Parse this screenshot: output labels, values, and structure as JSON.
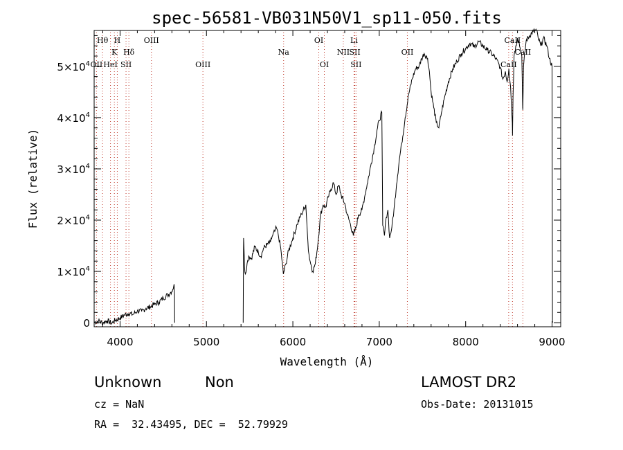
{
  "chart_data": {
    "type": "line",
    "title": "spec-56581-VB031N50V1_sp11-050.fits",
    "xlabel": "Wavelength (Å)",
    "ylabel": "Flux (relative)",
    "xlim": [
      3700,
      9100
    ],
    "ylim": [
      -800,
      57000
    ],
    "x_ticks": [
      4000,
      5000,
      6000,
      7000,
      8000,
      9000
    ],
    "y_ticks": [
      {
        "value": 0,
        "mant": "0",
        "exp": ""
      },
      {
        "value": 10000,
        "mant": "1×10",
        "exp": "4"
      },
      {
        "value": 20000,
        "mant": "2×10",
        "exp": "4"
      },
      {
        "value": 30000,
        "mant": "3×10",
        "exp": "4"
      },
      {
        "value": 40000,
        "mant": "4×10",
        "exp": "4"
      },
      {
        "value": 50000,
        "mant": "5×10",
        "exp": "4"
      }
    ],
    "grid": false,
    "series": [
      {
        "segments": [
          [
            [
              3700,
              100
            ],
            [
              3750,
              300
            ],
            [
              3800,
              0
            ],
            [
              3850,
              400
            ],
            [
              3900,
              -100
            ],
            [
              3950,
              500
            ],
            [
              4000,
              900
            ],
            [
              4050,
              1500
            ],
            [
              4100,
              1800
            ],
            [
              4150,
              1600
            ],
            [
              4200,
              2300
            ],
            [
              4250,
              2200
            ],
            [
              4300,
              2800
            ],
            [
              4350,
              3100
            ],
            [
              4400,
              3600
            ],
            [
              4450,
              4000
            ],
            [
              4500,
              4800
            ],
            [
              4550,
              5400
            ],
            [
              4580,
              5800
            ],
            [
              4610,
              6500
            ],
            [
              4620,
              7000
            ],
            [
              4625,
              7500
            ],
            [
              4630,
              5500
            ],
            [
              4632,
              0
            ]
          ],
          [
            [
              5425,
              0
            ],
            [
              5430,
              16500
            ],
            [
              5440,
              11000
            ],
            [
              5450,
              9500
            ],
            [
              5470,
              11500
            ],
            [
              5490,
              13000
            ],
            [
              5520,
              12500
            ],
            [
              5560,
              14800
            ],
            [
              5600,
              13800
            ],
            [
              5630,
              12900
            ],
            [
              5660,
              14500
            ],
            [
              5700,
              15200
            ],
            [
              5740,
              15700
            ],
            [
              5760,
              16800
            ],
            [
              5790,
              17800
            ],
            [
              5810,
              18500
            ],
            [
              5830,
              17200
            ],
            [
              5860,
              14500
            ],
            [
              5890,
              9500
            ],
            [
              5920,
              11500
            ],
            [
              5950,
              14000
            ],
            [
              6000,
              16500
            ],
            [
              6050,
              19200
            ],
            [
              6100,
              21200
            ],
            [
              6150,
              23000
            ],
            [
              6180,
              14000
            ],
            [
              6200,
              12000
            ],
            [
              6230,
              10000
            ],
            [
              6260,
              11500
            ],
            [
              6290,
              15500
            ],
            [
              6320,
              21000
            ],
            [
              6350,
              23000
            ],
            [
              6380,
              22500
            ],
            [
              6410,
              24500
            ],
            [
              6440,
              26000
            ],
            [
              6470,
              27300
            ],
            [
              6500,
              25000
            ],
            [
              6530,
              26800
            ],
            [
              6560,
              24800
            ],
            [
              6600,
              23300
            ],
            [
              6630,
              21000
            ],
            [
              6660,
              19500
            ],
            [
              6700,
              17000
            ],
            [
              6730,
              18500
            ],
            [
              6760,
              21000
            ],
            [
              6800,
              22000
            ],
            [
              6830,
              24500
            ],
            [
              6860,
              27000
            ],
            [
              6900,
              30500
            ],
            [
              6940,
              34000
            ],
            [
              6980,
              38000
            ],
            [
              7000,
              39500
            ],
            [
              7030,
              41000
            ],
            [
              7040,
              19000
            ],
            [
              7060,
              17000
            ],
            [
              7080,
              20500
            ],
            [
              7100,
              22000
            ],
            [
              7120,
              16500
            ],
            [
              7140,
              18000
            ],
            [
              7170,
              22000
            ],
            [
              7200,
              27000
            ],
            [
              7230,
              31500
            ],
            [
              7260,
              35000
            ],
            [
              7300,
              40000
            ],
            [
              7340,
              44500
            ],
            [
              7380,
              47500
            ],
            [
              7420,
              49500
            ],
            [
              7460,
              50000
            ],
            [
              7490,
              51500
            ],
            [
              7520,
              52500
            ],
            [
              7560,
              51500
            ],
            [
              7580,
              49000
            ],
            [
              7600,
              45000
            ],
            [
              7630,
              42000
            ],
            [
              7660,
              39000
            ],
            [
              7690,
              38000
            ],
            [
              7720,
              41000
            ],
            [
              7750,
              43500
            ],
            [
              7800,
              47000
            ],
            [
              7850,
              49500
            ],
            [
              7900,
              51000
            ],
            [
              7950,
              52500
            ],
            [
              8000,
              53500
            ],
            [
              8050,
              54500
            ],
            [
              8100,
              53800
            ],
            [
              8150,
              54800
            ],
            [
              8200,
              54000
            ],
            [
              8250,
              53200
            ],
            [
              8300,
              52500
            ],
            [
              8350,
              51500
            ],
            [
              8400,
              49800
            ],
            [
              8430,
              47500
            ],
            [
              8460,
              49000
            ],
            [
              8480,
              47000
            ],
            [
              8500,
              49500
            ],
            [
              8520,
              46000
            ],
            [
              8540,
              39000
            ],
            [
              8542,
              36500
            ],
            [
              8548,
              44000
            ],
            [
              8560,
              52000
            ],
            [
              8580,
              54000
            ],
            [
              8600,
              55500
            ],
            [
              8620,
              54500
            ],
            [
              8650,
              52000
            ],
            [
              8660,
              42000
            ],
            [
              8662,
              41500
            ],
            [
              8670,
              50000
            ],
            [
              8700,
              55000
            ],
            [
              8740,
              56000
            ],
            [
              8780,
              56800
            ],
            [
              8820,
              57000
            ],
            [
              8840,
              55500
            ],
            [
              8870,
              54000
            ],
            [
              8900,
              55500
            ],
            [
              8940,
              54000
            ],
            [
              8970,
              51500
            ],
            [
              9000,
              50000
            ],
            [
              9005,
              0
            ]
          ]
        ]
      }
    ],
    "lines": [
      {
        "label": "Hθ",
        "x": 3797,
        "row": 0
      },
      {
        "label": "OII",
        "x": 3727,
        "row": 2
      },
      {
        "label": "H",
        "x": 3968,
        "row": 0
      },
      {
        "label": "K",
        "x": 3934,
        "row": 1
      },
      {
        "label": "HeI",
        "x": 3889,
        "row": 2
      },
      {
        "label": "Hδ",
        "x": 4102,
        "row": 1
      },
      {
        "label": "SII",
        "x": 4069,
        "row": 2
      },
      {
        "label": "OIII",
        "x": 4363,
        "row": 0
      },
      {
        "label": "OIII",
        "x": 4959,
        "row": 2
      },
      {
        "label": "Na",
        "x": 5893,
        "row": 1
      },
      {
        "label": "OI",
        "x": 6300,
        "row": 0
      },
      {
        "label": "OI",
        "x": 6364,
        "row": 2
      },
      {
        "label": "Li",
        "x": 6708,
        "row": 0
      },
      {
        "label": "NII",
        "x": 6584,
        "row": 1
      },
      {
        "label": "SII",
        "x": 6717,
        "row": 1
      },
      {
        "label": "SII",
        "x": 6731,
        "row": 2
      },
      {
        "label": "OII",
        "x": 7325,
        "row": 1
      },
      {
        "label": "CaII",
        "x": 8542,
        "row": 0
      },
      {
        "label": "CaII",
        "x": 8498,
        "row": 2
      },
      {
        "label": "CaII",
        "x": 8662,
        "row": 1
      }
    ]
  },
  "info": {
    "class_label": "Unknown",
    "subclass_label": "Non",
    "survey": "LAMOST DR2",
    "cz": "cz = NaN",
    "obs_date": "Obs-Date: 20131015",
    "coords": "RA =  32.43495, DEC =  52.79929"
  },
  "colors": {
    "line_marker": "#c0392b",
    "spectrum": "#000000",
    "axis": "#000000"
  }
}
